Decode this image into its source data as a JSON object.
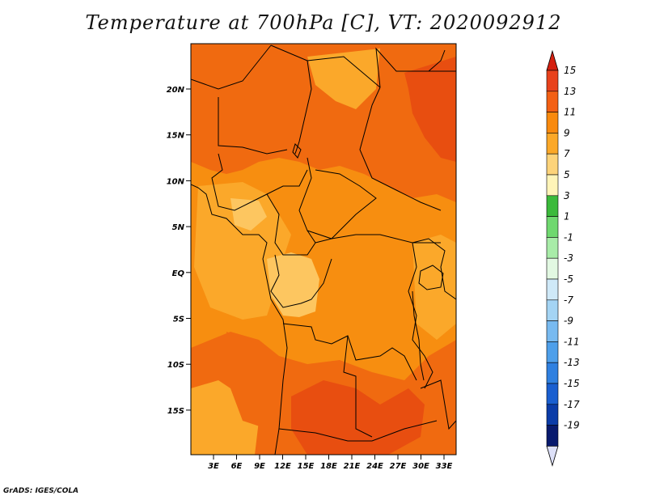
{
  "title": "Temperature at 700hPa [C], VT: 2020092912",
  "credit": "GrADS: IGES/COLA",
  "lat_labels": [
    "20N",
    "15N",
    "10N",
    "5N",
    "EQ",
    "5S",
    "10S",
    "15S"
  ],
  "lon_labels": [
    "3E",
    "6E",
    "9E",
    "12E",
    "15E",
    "18E",
    "21E",
    "24E",
    "27E",
    "30E",
    "33E"
  ],
  "colorbar": {
    "labels": [
      "15",
      "13",
      "11",
      "9",
      "7",
      "5",
      "3",
      "1",
      "-1",
      "-3",
      "-5",
      "-7",
      "-9",
      "-11",
      "-13",
      "-15",
      "-17",
      "-19"
    ],
    "colors": [
      "#e8421c",
      "#f36014",
      "#f98a0e",
      "#fba828",
      "#fdd37a",
      "#fff4b8",
      "#3bba3b",
      "#6fd86f",
      "#a8eca8",
      "#e2f8e2",
      "#cfe9f8",
      "#a4d4f4",
      "#78baf0",
      "#4e9fea",
      "#2f80e0",
      "#1a5fd0",
      "#0b3ca8",
      "#081a6e"
    ],
    "top_arrow_color": "#d42010",
    "bottom_arrow_color": "#dde0f8"
  },
  "map_colors": {
    "base": "#f78e10",
    "warm": "#f06a10",
    "hot": "#e84e10",
    "mild": "#fba82a",
    "cool": "#fdc660"
  }
}
